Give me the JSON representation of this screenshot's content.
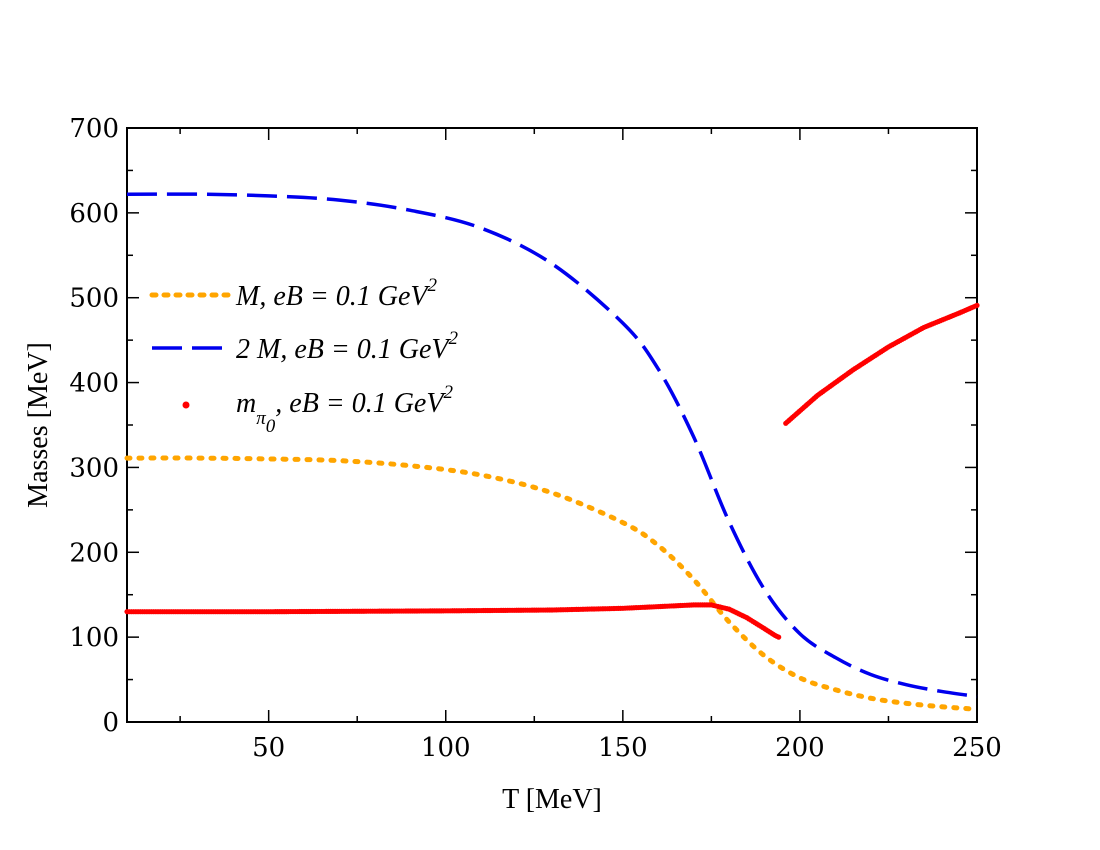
{
  "chart_data": {
    "type": "line",
    "title": "",
    "xlabel": "T [MeV]",
    "ylabel": "Masses [MeV]",
    "xlim": [
      10,
      250
    ],
    "ylim": [
      0,
      700
    ],
    "xticks": [
      50,
      100,
      150,
      200,
      250
    ],
    "yticks": [
      0,
      100,
      200,
      300,
      400,
      500,
      600,
      700
    ],
    "grid": false,
    "legend_position": "middle-left",
    "series": [
      {
        "name": "M",
        "legend_label": "M, eB = 0.1 GeV",
        "legend_sup": "2",
        "style": "dotted",
        "color": "#ffa500",
        "points": [
          [
            10,
            311
          ],
          [
            30,
            311
          ],
          [
            50,
            310
          ],
          [
            70,
            308
          ],
          [
            90,
            302
          ],
          [
            110,
            291
          ],
          [
            130,
            270
          ],
          [
            150,
            235
          ],
          [
            160,
            208
          ],
          [
            170,
            168
          ],
          [
            180,
            118
          ],
          [
            190,
            78
          ],
          [
            200,
            52
          ],
          [
            210,
            38
          ],
          [
            220,
            28
          ],
          [
            230,
            22
          ],
          [
            240,
            18
          ],
          [
            250,
            15
          ]
        ]
      },
      {
        "name": "2 M",
        "legend_label": "2 M, eB = 0.1 GeV",
        "legend_sup": "2",
        "style": "dashed",
        "color": "#0000ee",
        "points": [
          [
            10,
            622
          ],
          [
            30,
            622
          ],
          [
            50,
            620
          ],
          [
            70,
            615
          ],
          [
            90,
            603
          ],
          [
            110,
            582
          ],
          [
            130,
            540
          ],
          [
            150,
            470
          ],
          [
            160,
            416
          ],
          [
            170,
            336
          ],
          [
            180,
            236
          ],
          [
            190,
            156
          ],
          [
            200,
            104
          ],
          [
            210,
            76
          ],
          [
            220,
            56
          ],
          [
            230,
            44
          ],
          [
            240,
            36
          ],
          [
            250,
            30
          ]
        ]
      },
      {
        "name": "m_pi0",
        "legend_label": "m",
        "legend_sub": "π",
        "legend_subsub": "0",
        "legend_tail": ", eB = 0.1 GeV",
        "legend_sup": "2",
        "style": "dots",
        "color": "#ff0000",
        "segments": [
          [
            [
              10,
              130
            ],
            [
              50,
              130
            ],
            [
              100,
              131
            ],
            [
              130,
              132
            ],
            [
              150,
              134
            ],
            [
              160,
              136
            ],
            [
              170,
              138
            ],
            [
              175,
              138
            ],
            [
              180,
              133
            ],
            [
              185,
              123
            ],
            [
              190,
              110
            ],
            [
              193,
              102
            ],
            [
              194,
              100
            ]
          ],
          [
            [
              196,
              352
            ],
            [
              205,
              385
            ],
            [
              215,
              415
            ],
            [
              225,
              442
            ],
            [
              235,
              465
            ],
            [
              245,
              482
            ],
            [
              250,
              491
            ]
          ]
        ]
      }
    ]
  }
}
